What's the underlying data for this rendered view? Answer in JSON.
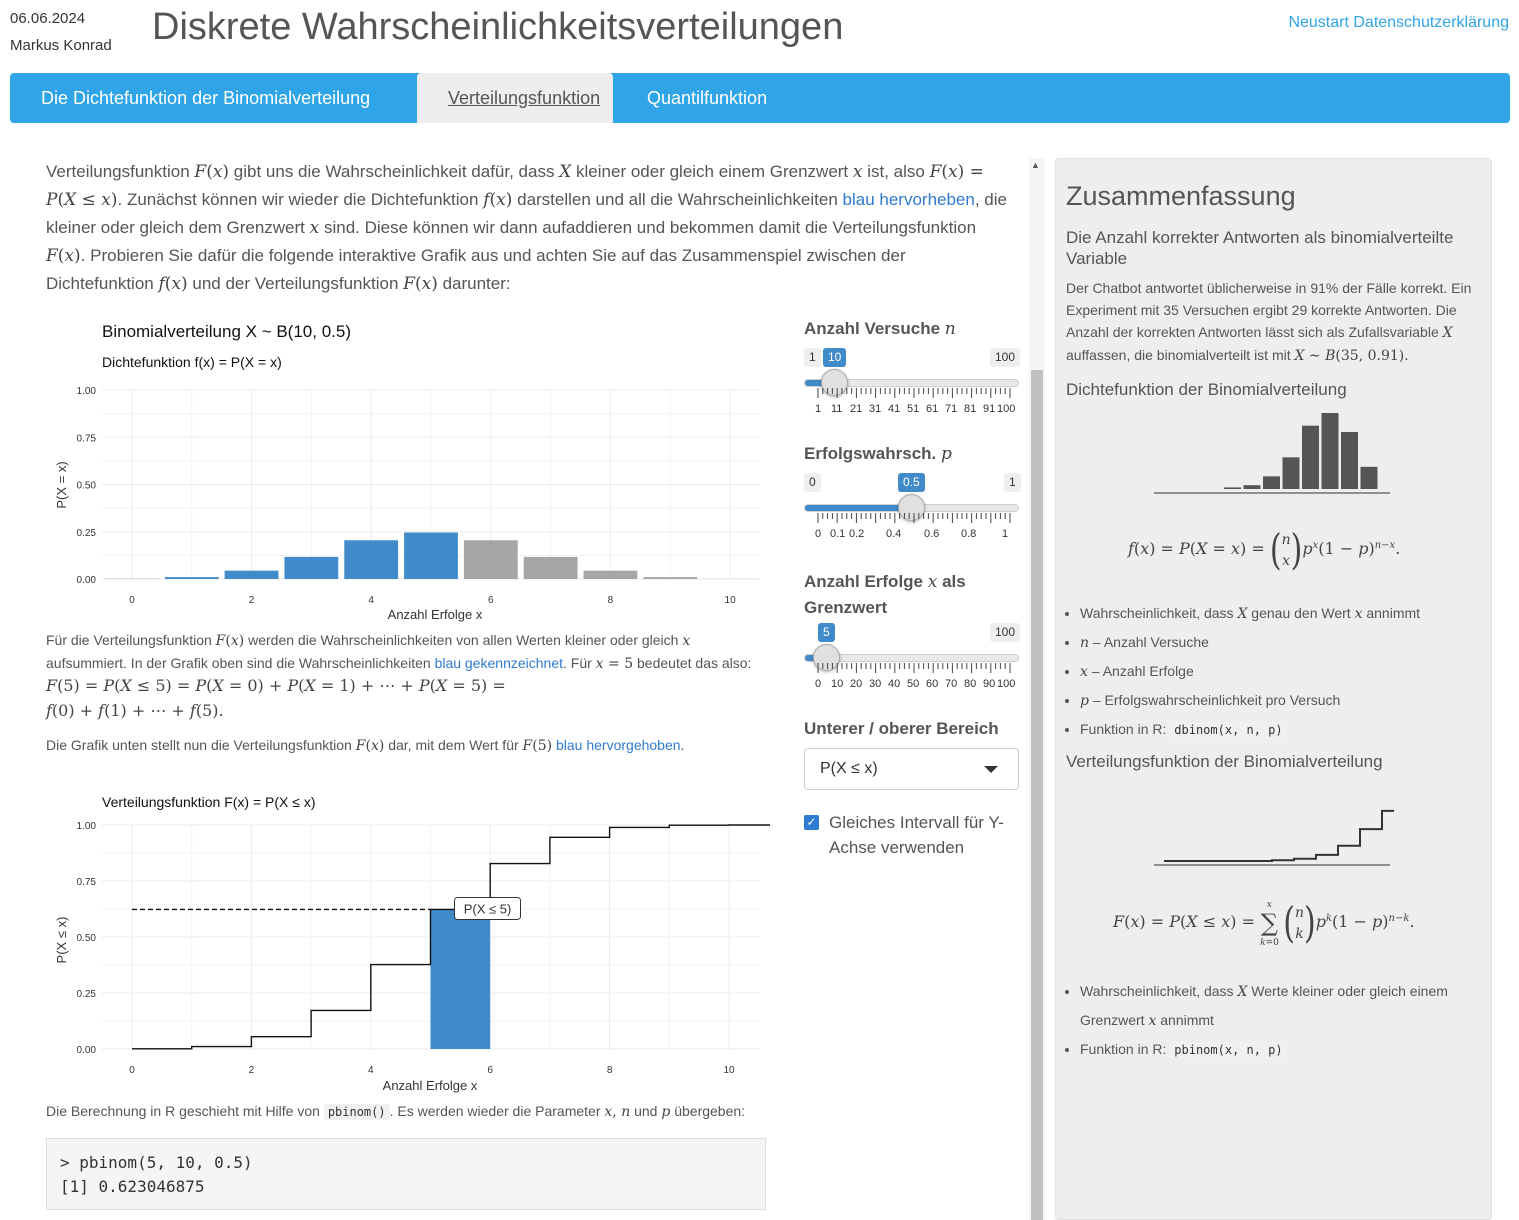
{
  "header": {
    "date": "06.06.2024",
    "author": "Markus Konrad",
    "title": "Diskrete Wahrscheinlichkeitsverteilungen",
    "links": [
      "Neustart",
      "Datenschutzerklärung"
    ]
  },
  "tabs": [
    {
      "label": "Die Dichtefunktion der Binomialverteilung",
      "active": false
    },
    {
      "label": "Verteilungsfunktion",
      "active": true
    },
    {
      "label": "Quantilfunktion",
      "active": false
    }
  ],
  "intro": {
    "t1": "Verteilungsfunktion",
    "t2": "gibt uns die Wahrscheinlichkeit dafür, dass",
    "t3": "kleiner oder gleich einem Grenzwert",
    "t4": "ist, also",
    "t5": ". Zunächst können wir wieder die Dichtefunktion",
    "t6": "darstellen und all die Wahrscheinlichkeiten",
    "link": "blau hervorheben",
    "t7": ", die kleiner oder gleich dem Grenzwert",
    "t8": "sind. Diese können wir dann aufaddieren und bekommen damit die Verteilungsfunktion",
    "t9": ". Probieren Sie dafür die folgende interaktive Grafik aus und achten Sie auf das Zusammenspiel zwischen der Dichtefunktion",
    "t10": "und der Verteilungsfunktion",
    "t11": "darunter:"
  },
  "plot1": {
    "title": "Binomialverteilung X ~ B(10, 0.5)",
    "subtitle": "Dichtefunktion f(x) = P(X = x)",
    "xlabel": "Anzahl Erfolge x",
    "ylabel": "P(X = x)",
    "yticks": [
      "0.00",
      "0.25",
      "0.50",
      "0.75",
      "1.00"
    ],
    "xticks": [
      "0",
      "2",
      "4",
      "6",
      "8",
      "10"
    ]
  },
  "para1": {
    "a": "Für die Verteilungsfunktion",
    "b": "werden die Wahrscheinlichkeiten von allen Werten kleiner oder gleich",
    "c": "aufsummiert. In der Grafik oben sind die Wahrscheinlichkeiten",
    "link": "blau gekennzeichnet",
    "d": ". Für",
    "e": "bedeutet das also:"
  },
  "para2": {
    "a": "Die Grafik unten stellt nun die Verteilungsfunktion",
    "b": "dar, mit dem Wert für",
    "link": "blau hervorgehoben",
    "c": "."
  },
  "plot2": {
    "subtitle": "Verteilungsfunktion F(x) = P(X ≤ x)",
    "xlabel": "Anzahl Erfolge x",
    "ylabel": "P(X ≤ x)",
    "annotation": "P(X ≤ 5)",
    "yticks": [
      "0.00",
      "0.25",
      "0.50",
      "0.75",
      "1.00"
    ],
    "xticks": [
      "0",
      "2",
      "4",
      "6",
      "8",
      "10"
    ]
  },
  "para3": {
    "a": "Die Berechnung in R geschieht mit Hilfe von",
    "code": "pbinom()",
    "b": ". Es werden wieder die Parameter",
    "c": "und",
    "d": "übergeben:"
  },
  "codebox": {
    "line1": "> pbinom(5, 10, 0.5)",
    "line2": "[1] 0.623046875"
  },
  "controls": {
    "n_label": "Anzahl Versuche",
    "n_min": "1",
    "n_max": "100",
    "n_value": "10",
    "n_ticks": [
      "1",
      "11",
      "21",
      "31",
      "41",
      "51",
      "61",
      "71",
      "81",
      "91",
      "100"
    ],
    "p_label": "Erfolgswahrsch.",
    "p_min": "0",
    "p_max": "1",
    "p_value": "0.5",
    "p_ticks": [
      "0",
      "0.1",
      "0.2",
      "0.4",
      "0.6",
      "0.8",
      "1"
    ],
    "x_label_1": "Anzahl Erfolge",
    "x_label_2": "als",
    "x_label_3": "Grenzwert",
    "x_max": "100",
    "x_value": "5",
    "x_ticks": [
      "0",
      "10",
      "20",
      "30",
      "40",
      "50",
      "60",
      "70",
      "80",
      "90",
      "100"
    ],
    "range_label": "Unterer / oberer Bereich",
    "range_value": "P(X ≤ x)",
    "same_y_label": "Gleiches Intervall für Y-Achse verwenden",
    "same_y_checked": true
  },
  "sidebar": {
    "title": "Zusammenfassung",
    "subtitle": "Die Anzahl korrekter Antworten als binomialverteilte Variable",
    "text1": "Der Chatbot antwortet üblicherweise in 91% der Fälle korrekt. Ein Experiment mit 35 Versuchen ergibt 29 korrekte Antworten. Die Anzahl der korrekten Antworten lässt sich als Zufallsvariable",
    "text2": "auffassen, die binomialverteilt ist mit",
    "dichte_heading": "Dichtefunktion der Binomialverteilung",
    "dichte_bullets": [
      {
        "pre": "Wahrscheinlichkeit, dass",
        "mid": "genau den Wert",
        "post": "annimmt"
      },
      {
        "text": "– Anzahl Versuche"
      },
      {
        "text": "– Anzahl Erfolge"
      },
      {
        "text": "– Erfolgswahrscheinlichkeit pro Versuch"
      },
      {
        "text": "Funktion in R:",
        "code": "dbinom(x, n, p)"
      }
    ],
    "vert_heading": "Verteilungsfunktion der Binomialverteilung",
    "vert_bullets": [
      {
        "pre": "Wahrscheinlichkeit, dass",
        "mid": "Werte kleiner oder gleich einem Grenzwert",
        "post": "annimmt"
      },
      {
        "text": "Funktion in R:",
        "code": "pbinom(x, n, p)"
      }
    ]
  },
  "chart_data": [
    {
      "type": "bar",
      "title": "Binomialverteilung X ~ B(10, 0.5)",
      "subtitle": "Dichtefunktion f(x) = P(X = x)",
      "xlabel": "Anzahl Erfolge x",
      "ylabel": "P(X = x)",
      "x": [
        0,
        1,
        2,
        3,
        4,
        5,
        6,
        7,
        8,
        9,
        10
      ],
      "values": [
        0.001,
        0.01,
        0.044,
        0.117,
        0.205,
        0.246,
        0.205,
        0.117,
        0.044,
        0.01,
        0.001
      ],
      "highlight_upto": 5,
      "highlight_color": "#428bca",
      "other_color": "#a6a6a6",
      "ylim": [
        0,
        1
      ],
      "xlim": [
        -0.5,
        10.5
      ]
    },
    {
      "type": "line",
      "subtitle": "Verteilungsfunktion F(x) = P(X ≤ x)",
      "xlabel": "Anzahl Erfolge x",
      "ylabel": "P(X ≤ x)",
      "x": [
        0,
        1,
        2,
        3,
        4,
        5,
        6,
        7,
        8,
        9,
        10
      ],
      "values": [
        0.001,
        0.011,
        0.055,
        0.172,
        0.377,
        0.623,
        0.828,
        0.945,
        0.989,
        0.999,
        1.0
      ],
      "highlight_x": 5,
      "highlight_value": 0.623,
      "ylim": [
        0,
        1
      ],
      "xlim": [
        0,
        10
      ]
    }
  ]
}
